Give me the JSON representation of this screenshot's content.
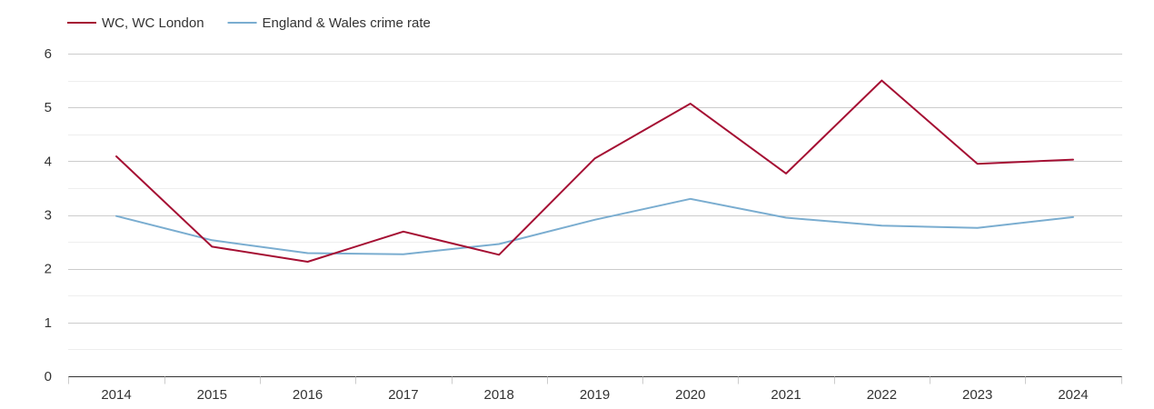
{
  "chart_data": {
    "type": "line",
    "x": [
      "2014",
      "2015",
      "2016",
      "2017",
      "2018",
      "2019",
      "2020",
      "2021",
      "2022",
      "2023",
      "2024"
    ],
    "series": [
      {
        "name": "WC, WC London",
        "color": "#a50f33",
        "values": [
          4.09,
          2.41,
          2.13,
          2.69,
          2.26,
          4.05,
          5.07,
          3.77,
          5.5,
          3.95,
          4.03
        ]
      },
      {
        "name": "England & Wales crime rate",
        "color": "#7aadd0",
        "values": [
          2.98,
          2.53,
          2.29,
          2.27,
          2.46,
          2.91,
          3.3,
          2.95,
          2.8,
          2.76,
          2.96
        ]
      }
    ],
    "ylim": [
      0,
      6
    ],
    "yticks": [
      0,
      1,
      2,
      3,
      4,
      5,
      6
    ],
    "grid": true,
    "legend_position": "top-left"
  }
}
